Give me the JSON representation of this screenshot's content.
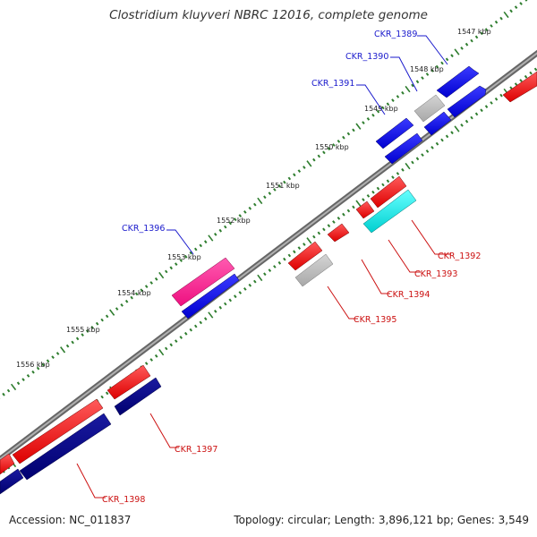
{
  "title": "Clostridium kluyveri NBRC 12016, complete genome",
  "footer": {
    "accession": "Accession: NC_011837",
    "summary": "Topology: circular; Length: 3,896,121 bp; Genes: 3,549"
  },
  "colors": {
    "backbone": "#888888",
    "backbone_edge": "#666666",
    "ticks": "#2e7d2e",
    "forward_gene": "#0000ee",
    "reverse_gene": "#ee0000",
    "dark_blue_gene": "#000080",
    "grey_gene": "#b8b8b8",
    "cyan_gene": "#00e5e5",
    "pink_gene": "#ff1493",
    "forward_label": "#1a1acc",
    "reverse_label": "#cc1111"
  },
  "scale_labels": [
    "1547 kbp",
    "1548 kbp",
    "1549 kbp",
    "1550 kbp",
    "1551 kbp",
    "1552 kbp",
    "1553 kbp",
    "1554 kbp",
    "1555 kbp",
    "1556 kbp"
  ],
  "gene_labels": {
    "forward": [
      "CKR_1389",
      "CKR_1390",
      "CKR_1391",
      "CKR_1396"
    ],
    "reverse": [
      "CKR_1392",
      "CKR_1393",
      "CKR_1394",
      "CKR_1395",
      "CKR_1397",
      "CKR_1398"
    ]
  },
  "legend_icons": [
    "forward-strand-gene-icon",
    "reverse-strand-gene-icon"
  ]
}
